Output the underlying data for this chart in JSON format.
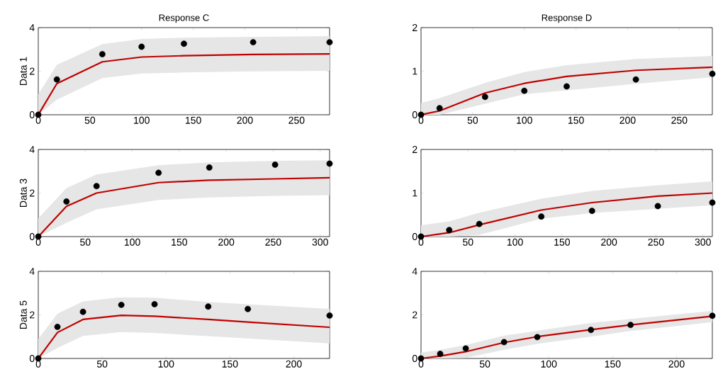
{
  "chart_data": [
    {
      "type": "line",
      "title": "Response C",
      "ylabel": "Data 1",
      "x": [
        0,
        18,
        62,
        100,
        141,
        208,
        282
      ],
      "xlim": [
        0,
        282
      ],
      "xticks": [
        0,
        50,
        100,
        150,
        200,
        250
      ],
      "ylim": [
        0,
        4
      ],
      "yticks": [
        0,
        2,
        4
      ],
      "grid": false,
      "legend": false,
      "series": [
        {
          "color": "#c00000",
          "marker": "none",
          "values": [
            0,
            1.43,
            2.43,
            2.65,
            2.71,
            2.77,
            2.79
          ],
          "lower": [
            0,
            0.69,
            1.68,
            1.89,
            1.94,
            1.99,
            2.02
          ],
          "upper": [
            0.94,
            2.29,
            3.24,
            3.48,
            3.54,
            3.58,
            3.61
          ]
        },
        {
          "type": "scatter",
          "color": "#000000",
          "marker": "circle",
          "values": [
            0,
            1.62,
            2.78,
            3.12,
            3.26,
            3.33,
            3.33
          ]
        }
      ]
    },
    {
      "type": "line",
      "title": "Response D",
      "x": [
        0,
        18,
        62,
        100,
        141,
        208,
        282
      ],
      "xlim": [
        0,
        282
      ],
      "xticks": [
        0,
        50,
        100,
        150,
        200,
        250
      ],
      "ylim": [
        0,
        2
      ],
      "yticks": [
        0,
        1,
        2
      ],
      "grid": false,
      "legend": false,
      "series": [
        {
          "color": "#c00000",
          "marker": "none",
          "values": [
            0,
            0.09,
            0.5,
            0.72,
            0.88,
            1.02,
            1.09
          ],
          "lower": [
            0,
            0,
            0.25,
            0.47,
            0.56,
            0.71,
            0.86
          ],
          "upper": [
            0.27,
            0.38,
            0.73,
            0.98,
            1.14,
            1.28,
            1.35
          ]
        },
        {
          "type": "scatter",
          "color": "#000000",
          "marker": "circle",
          "values": [
            0,
            0.15,
            0.41,
            0.55,
            0.65,
            0.81,
            0.94
          ]
        }
      ]
    },
    {
      "type": "line",
      "ylabel": "Data 3",
      "x": [
        0,
        30,
        62,
        128,
        182,
        252,
        310
      ],
      "xlim": [
        0,
        310
      ],
      "xticks": [
        0,
        50,
        100,
        150,
        200,
        250,
        300
      ],
      "ylim": [
        0,
        4
      ],
      "yticks": [
        0,
        2,
        4
      ],
      "grid": false,
      "legend": false,
      "series": [
        {
          "color": "#c00000",
          "marker": "none",
          "values": [
            0,
            1.39,
            2.0,
            2.48,
            2.59,
            2.65,
            2.7
          ],
          "lower": [
            0,
            0.63,
            1.25,
            1.68,
            1.8,
            1.87,
            1.9
          ],
          "upper": [
            0.84,
            2.23,
            2.85,
            3.28,
            3.41,
            3.48,
            3.5
          ]
        },
        {
          "type": "scatter",
          "color": "#000000",
          "marker": "circle",
          "values": [
            0,
            1.61,
            2.32,
            2.93,
            3.17,
            3.3,
            3.35
          ]
        }
      ]
    },
    {
      "type": "line",
      "x": [
        0,
        30,
        62,
        128,
        182,
        252,
        310
      ],
      "xlim": [
        0,
        310
      ],
      "xticks": [
        0,
        50,
        100,
        150,
        200,
        250,
        300
      ],
      "ylim": [
        0,
        2
      ],
      "yticks": [
        0,
        1,
        2
      ],
      "grid": false,
      "legend": false,
      "series": [
        {
          "color": "#c00000",
          "marker": "none",
          "values": [
            0,
            0.09,
            0.27,
            0.61,
            0.78,
            0.93,
            1.0
          ],
          "lower": [
            0,
            0,
            0.04,
            0.41,
            0.54,
            0.64,
            0.72
          ],
          "upper": [
            0.26,
            0.35,
            0.55,
            0.87,
            1.05,
            1.18,
            1.27
          ]
        },
        {
          "type": "scatter",
          "color": "#000000",
          "marker": "circle",
          "values": [
            0,
            0.15,
            0.29,
            0.46,
            0.59,
            0.7,
            0.78
          ]
        }
      ]
    },
    {
      "type": "line",
      "ylabel": "Data 5",
      "x": [
        0,
        15,
        35,
        65,
        91,
        133,
        164,
        228
      ],
      "xlim": [
        0,
        228
      ],
      "xticks": [
        0,
        50,
        100,
        150,
        200
      ],
      "ylim": [
        0,
        4
      ],
      "yticks": [
        0,
        2,
        4
      ],
      "grid": false,
      "legend": false,
      "series": [
        {
          "color": "#c00000",
          "marker": "none",
          "values": [
            0,
            1.19,
            1.79,
            1.98,
            1.94,
            1.79,
            1.67,
            1.43
          ],
          "lower": [
            0,
            0.48,
            1.03,
            1.21,
            1.17,
            1.02,
            0.92,
            0.69
          ],
          "upper": [
            0.89,
            2.06,
            2.62,
            2.81,
            2.79,
            2.59,
            2.49,
            2.28
          ]
        },
        {
          "type": "scatter",
          "color": "#000000",
          "marker": "circle",
          "values": [
            0,
            1.45,
            2.14,
            2.46,
            2.49,
            2.38,
            2.27,
            1.97
          ]
        }
      ]
    },
    {
      "type": "line",
      "x": [
        0,
        15,
        35,
        65,
        91,
        133,
        164,
        228
      ],
      "xlim": [
        0,
        228
      ],
      "xticks": [
        0,
        50,
        100,
        150,
        200
      ],
      "ylim": [
        0,
        4
      ],
      "yticks": [
        0,
        2,
        4
      ],
      "grid": false,
      "legend": false,
      "series": [
        {
          "color": "#c00000",
          "marker": "none",
          "values": [
            0,
            0.11,
            0.31,
            0.73,
            1.0,
            1.32,
            1.54,
            1.94
          ],
          "lower": [
            0,
            0,
            0.02,
            0.4,
            0.67,
            1.0,
            1.26,
            1.67
          ],
          "upper": [
            0.27,
            0.4,
            0.62,
            1.05,
            1.27,
            1.63,
            1.81,
            2.19
          ]
        },
        {
          "type": "scatter",
          "color": "#000000",
          "marker": "circle",
          "values": [
            0,
            0.21,
            0.46,
            0.75,
            0.98,
            1.31,
            1.54,
            1.96
          ]
        }
      ]
    }
  ]
}
